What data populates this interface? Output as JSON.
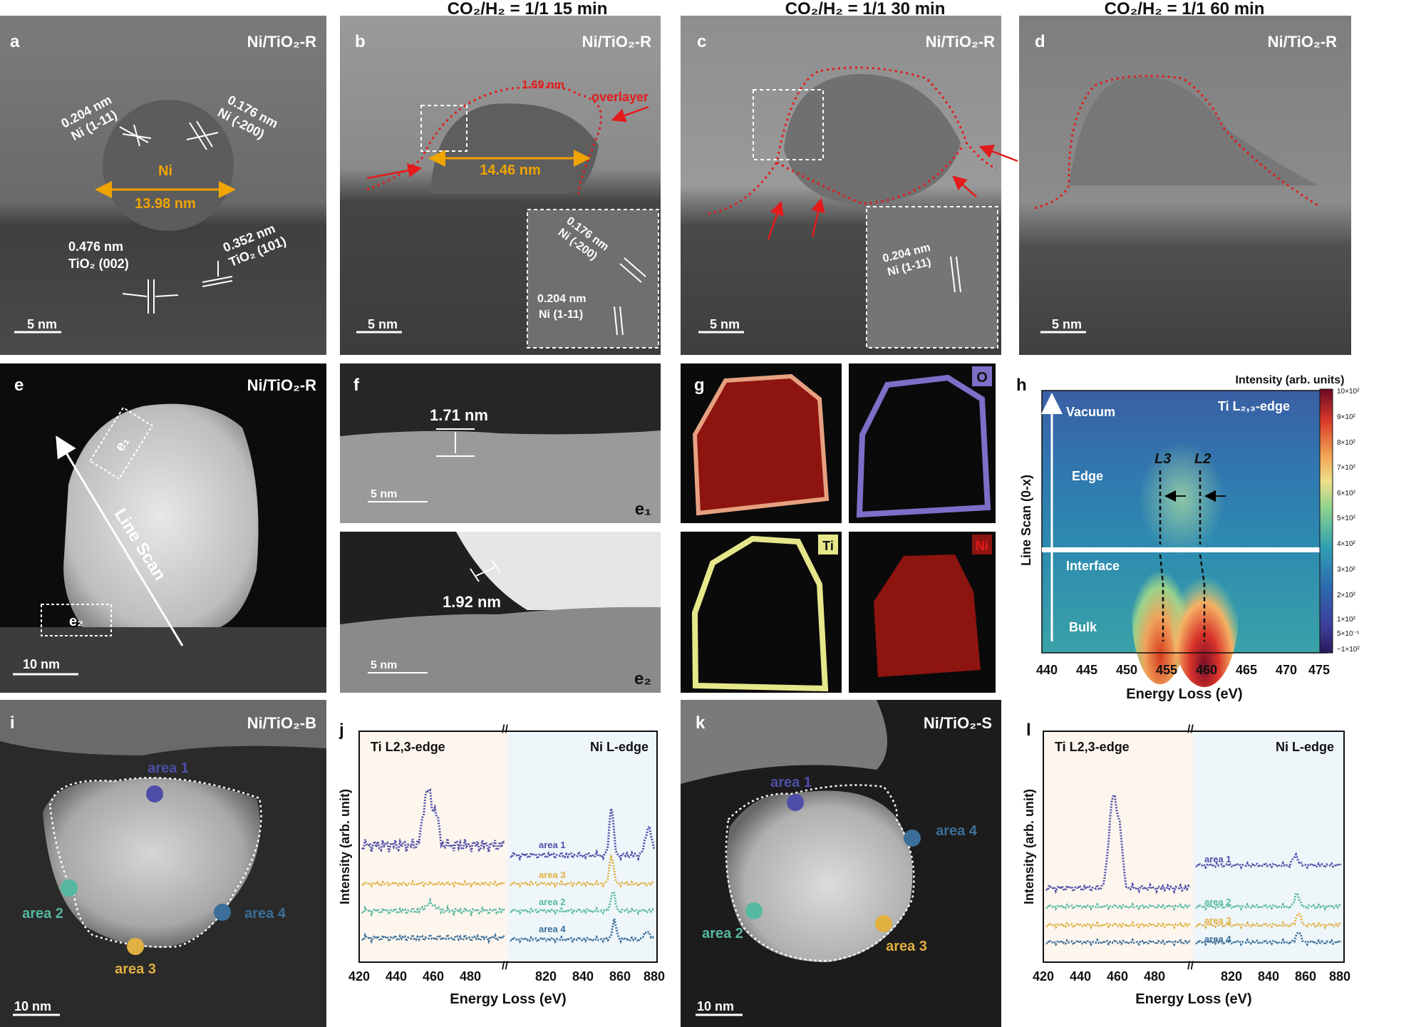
{
  "figure": {
    "colors": {
      "red_dotted": "#e31b1b",
      "gold": "#f0a400",
      "area1": "#4e4ea8",
      "area2": "#56b8a0",
      "area3": "#e0b040",
      "area4": "#3b6f99",
      "panel_j_left_bg": "#fdf6ee",
      "panel_j_right_bg": "#eef6fa"
    },
    "column_titles": [
      "CO₂/H₂ = 1/1 15 min",
      "CO₂/H₂ = 1/1 30 min",
      "CO₂/H₂ = 1/1 60 min"
    ],
    "panels": {
      "a": {
        "letter": "a",
        "sample": "Ni/TiO₂-R",
        "scale": "5 nm",
        "ni_label": "Ni",
        "diameter": "13.98 nm",
        "d1": "0.204 nm",
        "d1_plane": "Ni (1-11)",
        "d2": "0.176 nm",
        "d2_plane": "Ni (-200)",
        "d3": "0.476 nm",
        "d3_plane": "TiO₂ (002)",
        "d4": "0.352 nm",
        "d4_plane": "TiO₂ (101)"
      },
      "b": {
        "letter": "b",
        "sample": "Ni/TiO₂-R",
        "scale": "5 nm",
        "overlayer_thickness": "1.69 nm",
        "overlayer": "overlayer",
        "diameter": "14.46 nm",
        "inset_d1": "0.176 nm",
        "inset_d1_plane": "Ni (-200)",
        "inset_d2": "0.204 nm",
        "inset_d2_plane": "Ni (1-11)"
      },
      "c": {
        "letter": "c",
        "sample": "Ni/TiO₂-R",
        "scale": "5 nm",
        "inset_d": "0.204 nm",
        "inset_plane": "Ni (1-11)"
      },
      "d": {
        "letter": "d",
        "sample": "Ni/TiO₂-R",
        "scale": "5 nm"
      },
      "e": {
        "letter": "e",
        "sample": "Ni/TiO₂-R",
        "scale": "10 nm",
        "line_scan": "Line Scan",
        "box1": "e₁",
        "box2": "e₂"
      },
      "f": {
        "letter": "f",
        "top_thickness": "1.71 nm",
        "top_scale": "5 nm",
        "top_tag": "e₁",
        "bottom_thickness": "1.92 nm",
        "bottom_scale": "5 nm",
        "bottom_tag": "e₂"
      },
      "g": {
        "letter": "g",
        "map_O": "O",
        "map_Ti": "Ti",
        "map_Ni": "Ni"
      },
      "h": {
        "letter": "h",
        "edge_label": "Ti L₂,₃-edge",
        "colorbar_title": "Intensity (arb. units)",
        "colorbar_ticks": [
          "10×10²",
          "9×10²",
          "8×10²",
          "7×10²",
          "6×10²",
          "5×10²",
          "4×10²",
          "3×10²",
          "2×10²",
          "1×10²",
          "5×10⁻¹",
          "−1×10²"
        ],
        "ylabel": "Line Scan (0-x)",
        "xlabel": "Energy Loss (eV)",
        "xticks": [
          "440",
          "445",
          "450",
          "455",
          "460",
          "465",
          "470",
          "475"
        ],
        "regions": [
          "Vacuum",
          "Edge",
          "Interface",
          "Bulk"
        ],
        "L3": "L3",
        "L2": "L2"
      },
      "i": {
        "letter": "i",
        "sample": "Ni/TiO₂-B",
        "scale": "10 nm",
        "areas": [
          "area 1",
          "area 2",
          "area 3",
          "area 4"
        ]
      },
      "j": {
        "letter": "j",
        "left_title": "Ti L2,3-edge",
        "right_title": "Ni L-edge",
        "ylabel": "Intensity (arb. unit)",
        "xlabel": "Energy Loss (eV)",
        "xticks_left": [
          "420",
          "440",
          "460",
          "480"
        ],
        "xticks_right": [
          "820",
          "840",
          "860",
          "880"
        ],
        "trace_labels": [
          "area 1",
          "area 3",
          "area 2",
          "area 4"
        ]
      },
      "k": {
        "letter": "k",
        "sample": "Ni/TiO₂-S",
        "scale": "10 nm",
        "areas": [
          "area 1",
          "area 2",
          "area 3",
          "area 4"
        ]
      },
      "l": {
        "letter": "l",
        "left_title": "Ti L2,3-edge",
        "right_title": "Ni L-edge",
        "ylabel": "Intensity (arb. unit)",
        "xlabel": "Energy Loss (eV)",
        "xticks_left": [
          "420",
          "440",
          "460",
          "480"
        ],
        "xticks_right": [
          "820",
          "840",
          "860",
          "880"
        ],
        "trace_labels": [
          "area 1",
          "area 2",
          "area 3",
          "area 4"
        ]
      }
    }
  }
}
